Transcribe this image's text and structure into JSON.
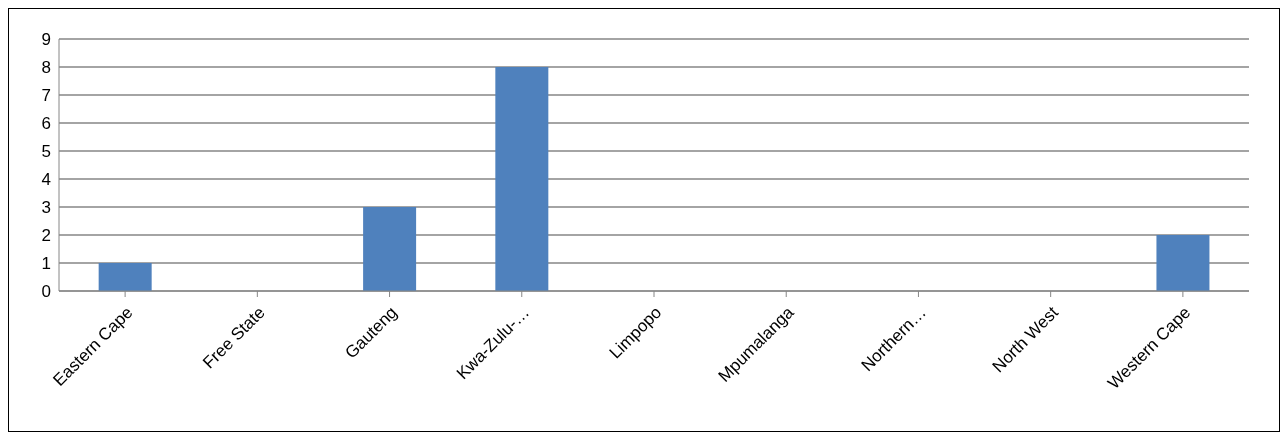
{
  "chart_data": {
    "type": "bar",
    "categories": [
      "Eastern Cape",
      "Free State",
      "Gauteng",
      "Kwa-Zulu-…",
      "Limpopo",
      "Mpumalanga",
      "Northern…",
      "North West",
      "Western Cape"
    ],
    "values": [
      1,
      0,
      3,
      8,
      0,
      0,
      0,
      0,
      2
    ],
    "color": "#4f81bd",
    "ylim": [
      0,
      9
    ],
    "yticks": [
      0,
      1,
      2,
      3,
      4,
      5,
      6,
      7,
      8,
      9
    ],
    "grid": "y"
  }
}
